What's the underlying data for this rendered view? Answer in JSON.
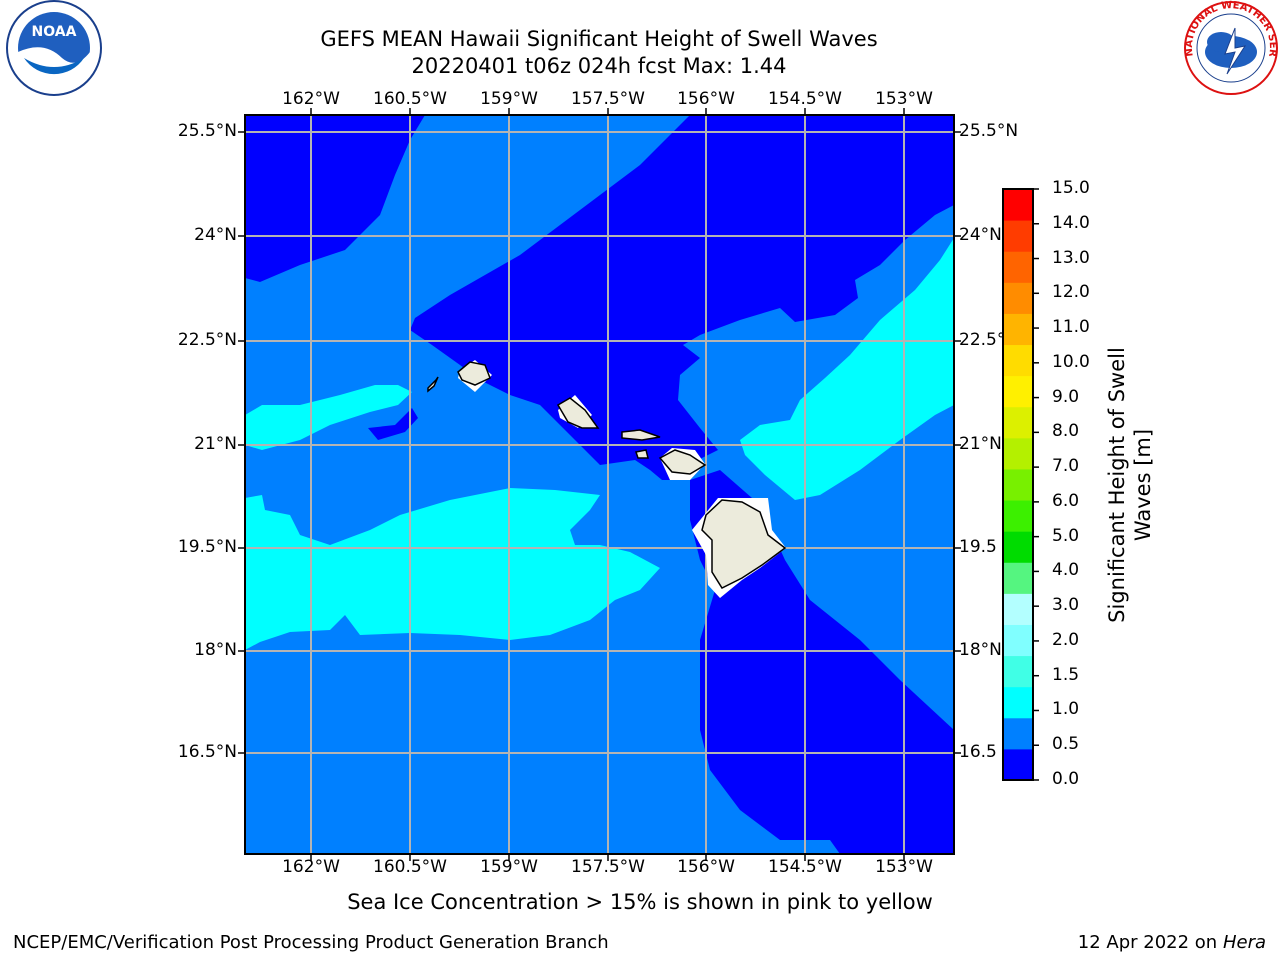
{
  "header": {
    "title_line1": "GEFS MEAN Hawaii Significant Height of Swell Waves",
    "title_line2": "20220401 t06z 024h fcst   Max: 1.44"
  },
  "map": {
    "lon_ticks": [
      "162°W",
      "160.5°W",
      "159°W",
      "157.5°W",
      "156°W",
      "154.5°W",
      "153°W"
    ],
    "lat_ticks_left": [
      "25.5°N",
      "24°N",
      "22.5°N",
      "21°N",
      "19.5°N",
      "18°N",
      "16.5°N"
    ],
    "lat_ticks_right": [
      "25.5°N",
      "24°N",
      "22.5°",
      "21°N",
      "19.5",
      "18°N",
      "16.5"
    ],
    "fill_colors": {
      "0.0-0.5": "#0000ff",
      "0.5-1.0": "#0080ff",
      "1.0-1.5": "#00ffff",
      "land": "#ecebdc"
    }
  },
  "colorbar": {
    "label_line1": "Significant Height of Swell",
    "label_line2": "Waves [m]",
    "ticks": [
      "15.0",
      "14.0",
      "13.0",
      "12.0",
      "11.0",
      "10.0",
      "9.0",
      "8.0",
      "7.0",
      "6.0",
      "5.0",
      "4.0",
      "3.0",
      "2.0",
      "1.5",
      "1.0",
      "0.5",
      "0.0"
    ],
    "colors": [
      "#0000ff",
      "#0080ff",
      "#00ffff",
      "#40ffe6",
      "#80ffff",
      "#b3ffff",
      "#55f580",
      "#00dc00",
      "#3cf000",
      "#78f000",
      "#b4f000",
      "#dcf000",
      "#fff000",
      "#ffdc00",
      "#ffb400",
      "#ff8c00",
      "#ff6400",
      "#ff3c00",
      "#ff0000"
    ]
  },
  "caption": "Sea Ice Concentration > 15% is shown in pink to yellow",
  "footer": {
    "left": "NCEP/EMC/Verification Post Processing Product Generation Branch",
    "right_prefix": "12 Apr 2022 on ",
    "right_host": "Hera"
  },
  "logos": {
    "noaa_text": "NOAA",
    "nws_text": "NATIONAL WEATHER SERVICE"
  }
}
